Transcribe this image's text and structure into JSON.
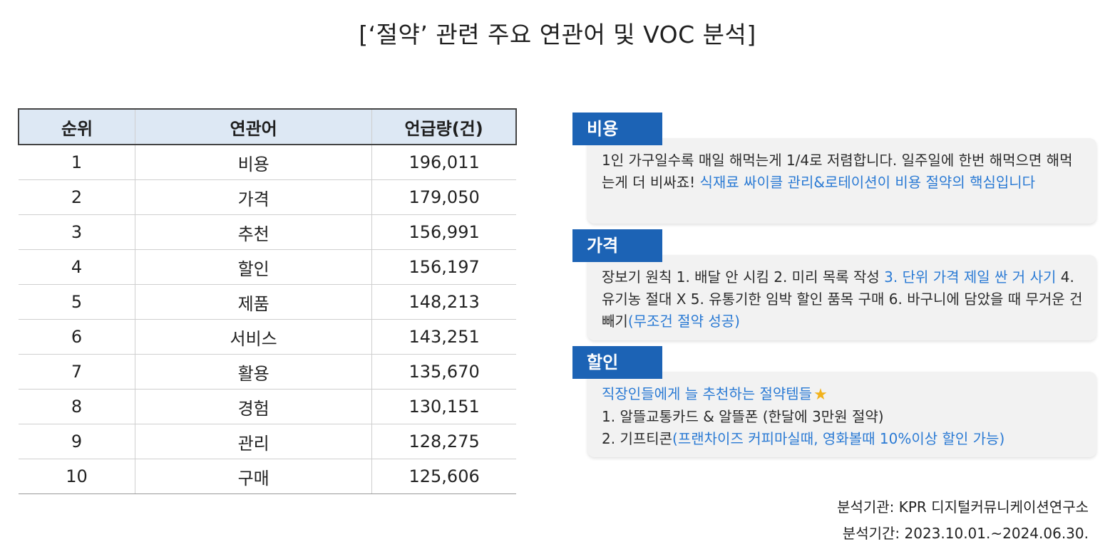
{
  "title": "[‘절약’ 관련 주요 연관어 및 VOC 분석]",
  "table": {
    "headers": [
      "순위",
      "연관어",
      "언급량(건)"
    ],
    "rows": [
      {
        "rank": "1",
        "word": "비용",
        "count": "196,011"
      },
      {
        "rank": "2",
        "word": "가격",
        "count": "179,050"
      },
      {
        "rank": "3",
        "word": "추천",
        "count": "156,991"
      },
      {
        "rank": "4",
        "word": "할인",
        "count": "156,197"
      },
      {
        "rank": "5",
        "word": "제품",
        "count": "148,213"
      },
      {
        "rank": "6",
        "word": "서비스",
        "count": "143,251"
      },
      {
        "rank": "7",
        "word": "활용",
        "count": "135,670"
      },
      {
        "rank": "8",
        "word": "경험",
        "count": "130,151"
      },
      {
        "rank": "9",
        "word": "관리",
        "count": "128,275"
      },
      {
        "rank": "10",
        "word": "구매",
        "count": "125,606"
      }
    ]
  },
  "voc": {
    "cost": {
      "tag": "비용",
      "text_plain": "1인 가구일수록 매일 해먹는게 1/4로 저렴합니다. 일주일에 한번 해먹으면 해먹는게 더 비싸죠! ",
      "text_highlight": "식재료 싸이클 관리&로테이션이 비용 절약의 핵심입니다"
    },
    "price": {
      "tag": "가격",
      "text_plain1": "장보기 원칙 1. 배달 안 시킴 2. 미리 목록 작성 ",
      "text_highlight1": "3. 단위 가격 제일 싼 거 사기",
      "text_plain2": " 4. 유기농 절대 X 5. 유통기한 임박 할인 품목 구매 6. 바구니에 담았을 때 무거운 건 빼기",
      "text_highlight2": "(무조건 절약 성공)"
    },
    "discount": {
      "tag": "할인",
      "line1_highlight": "직장인들에게 늘 추천하는 절약템들",
      "star_icon": "star-icon",
      "line2": "1. 알뜰교통카드 & 알뜰폰 (한달에 3만원 절약)",
      "line3_plain": "2. 기프티콘",
      "line3_highlight": "(프랜차이즈 커피마실때, 영화볼때 10%이상 할인 가능)"
    }
  },
  "footer": {
    "agency": "분석기관: KPR 디지털커뮤니케이션연구소",
    "period": "분석기간: 2023.10.01.~2024.06.30."
  },
  "colors": {
    "tag_bg": "#1c63b5",
    "highlight": "#2a7ad4",
    "header_bg": "#dde8f4"
  }
}
